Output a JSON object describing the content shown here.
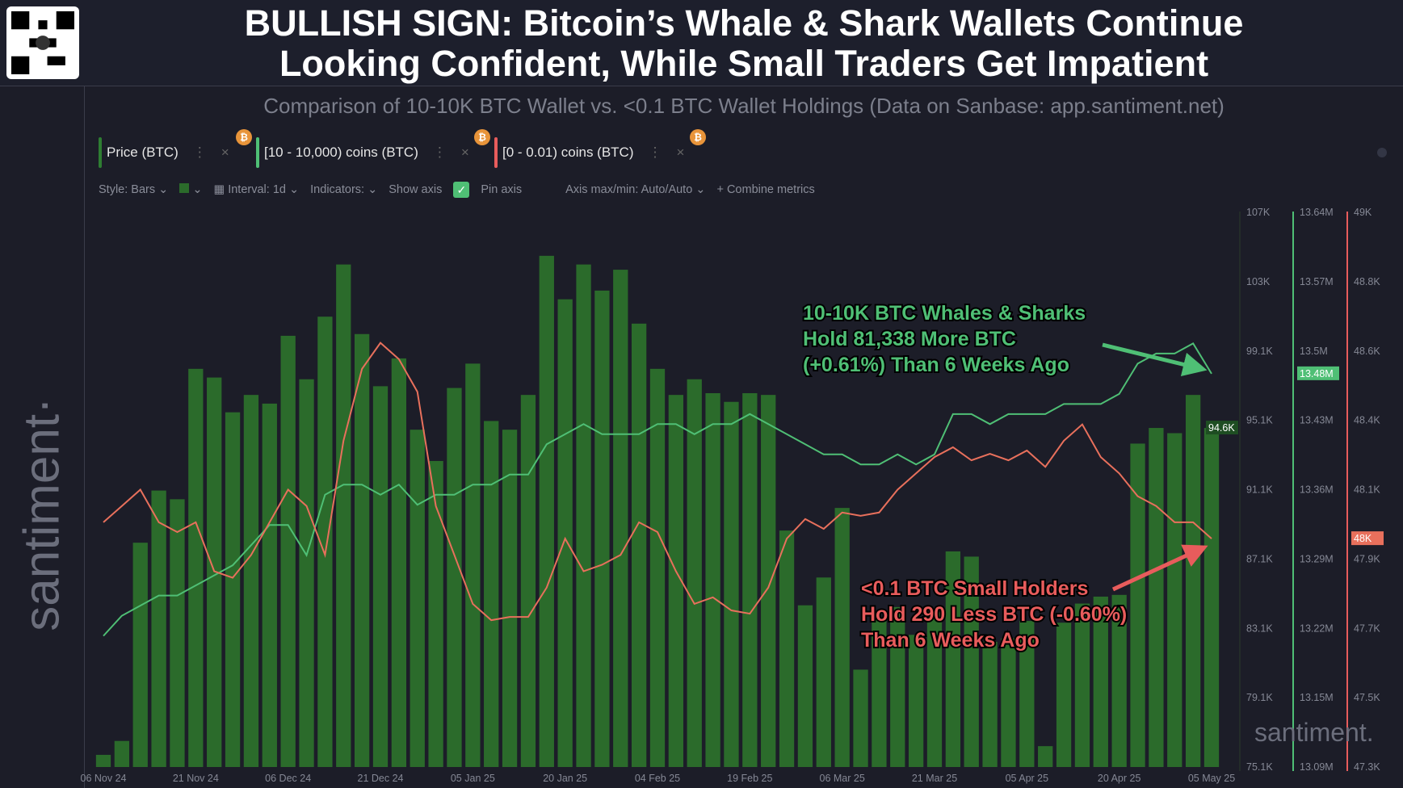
{
  "header": {
    "title_line1": "BULLISH SIGN: Bitcoin’s Whale & Shark Wallets Continue",
    "title_line2": "Looking Confident, While Small Traders Get Impatient",
    "subtitle": "Comparison of 10-10K BTC Wallet vs. <0.1 BTC Wallet Holdings (Data on Sanbase: app.santiment.net)",
    "brand": "santiment·"
  },
  "metrics": [
    {
      "label": "Price (BTC)",
      "color": "#2e7d32"
    },
    {
      "label": "[10 - 10,000) coins (BTC)",
      "color": "#4fbf75"
    },
    {
      "label": "[0 - 0.01) coins (BTC)",
      "color": "#e85c5c"
    }
  ],
  "toolbar": {
    "style": "Style: Bars",
    "interval": "Interval: 1d",
    "indicators": "Indicators:",
    "show_axis": "Show axis",
    "pin_axis": "Pin axis",
    "axis_minmax": "Axis max/min: Auto/Auto",
    "combine": "+ Combine metrics"
  },
  "chart_data": {
    "type": "bar+line",
    "x_ticks": [
      "06 Nov 24",
      "21 Nov 24",
      "06 Dec 24",
      "21 Dec 24",
      "05 Jan 25",
      "20 Jan 25",
      "04 Feb 25",
      "19 Feb 25",
      "06 Mar 25",
      "21 Mar 25",
      "05 Apr 25",
      "20 Apr 25",
      "05 May 25"
    ],
    "x_start": "2024-11-06",
    "x_step_days": 3,
    "series": [
      {
        "name": "Price (BTC)",
        "type": "bar",
        "color": "#2b6b2b",
        "axis_ticks": [
          "107K",
          "103K",
          "99.1K",
          "95.1K",
          "91.1K",
          "87.1K",
          "83.1K",
          "79.1K",
          "75.1K"
        ],
        "ylim": [
          75.1,
          107
        ],
        "unit": "K",
        "last_label": "94.6K",
        "values": [
          75.8,
          76.6,
          88,
          91,
          90.5,
          98,
          97.5,
          95.5,
          96.5,
          96,
          99.9,
          97.4,
          101,
          104,
          100,
          97,
          98.6,
          94.5,
          92.7,
          96.9,
          98.3,
          95,
          94.5,
          96.5,
          104.5,
          102,
          104,
          102.5,
          103.7,
          100.6,
          98,
          96.5,
          97.4,
          96.6,
          96.1,
          96.6,
          96.5,
          88.7,
          84.4,
          86,
          90,
          80.7,
          83.7,
          84.3,
          82.7,
          84,
          87.5,
          87.2,
          82.3,
          82.5,
          83.5,
          76.3,
          83.4,
          84.5,
          84.9,
          85,
          93.7,
          94.6,
          94.3,
          96.5,
          94.6
        ]
      },
      {
        "name": "[10 - 10,000) coins (BTC)",
        "type": "line",
        "color": "#4fbf75",
        "axis_ticks": [
          "13.64M",
          "13.57M",
          "13.5M",
          "13.43M",
          "13.36M",
          "13.29M",
          "13.22M",
          "13.15M",
          "13.09M"
        ],
        "ylim": [
          13.09,
          13.64
        ],
        "unit": "M",
        "last_label": "13.48M",
        "values": [
          13.22,
          13.24,
          13.25,
          13.26,
          13.26,
          13.27,
          13.28,
          13.29,
          13.31,
          13.33,
          13.33,
          13.3,
          13.36,
          13.37,
          13.37,
          13.36,
          13.37,
          13.35,
          13.36,
          13.36,
          13.37,
          13.37,
          13.38,
          13.38,
          13.41,
          13.42,
          13.43,
          13.42,
          13.42,
          13.42,
          13.43,
          13.43,
          13.42,
          13.43,
          13.43,
          13.44,
          13.43,
          13.42,
          13.41,
          13.4,
          13.4,
          13.39,
          13.39,
          13.4,
          13.39,
          13.4,
          13.44,
          13.44,
          13.43,
          13.44,
          13.44,
          13.44,
          13.45,
          13.45,
          13.45,
          13.46,
          13.49,
          13.5,
          13.5,
          13.51,
          13.48
        ]
      },
      {
        "name": "[0 - 0.01) coins (BTC)",
        "type": "line",
        "color": "#e8705c",
        "axis_ticks": [
          "49K",
          "48.8K",
          "48.6K",
          "48.4K",
          "48.1K",
          "47.9K",
          "47.7K",
          "47.5K",
          "47.3K"
        ],
        "ylim": [
          47.3,
          49
        ],
        "unit": "K",
        "last_label": "48K",
        "values": [
          48.05,
          48.1,
          48.15,
          48.05,
          48.02,
          48.05,
          47.9,
          47.88,
          47.95,
          48.05,
          48.15,
          48.1,
          47.95,
          48.3,
          48.52,
          48.6,
          48.55,
          48.45,
          48.1,
          47.95,
          47.8,
          47.75,
          47.76,
          47.76,
          47.85,
          48.0,
          47.9,
          47.92,
          47.95,
          48.05,
          48.02,
          47.9,
          47.8,
          47.82,
          47.78,
          47.77,
          47.85,
          48.0,
          48.06,
          48.03,
          48.08,
          48.07,
          48.08,
          48.15,
          48.2,
          48.25,
          48.28,
          48.24,
          48.26,
          48.24,
          48.27,
          48.22,
          48.3,
          48.35,
          48.25,
          48.2,
          48.13,
          48.1,
          48.05,
          48.05,
          48.0
        ]
      }
    ],
    "annotations": [
      {
        "lines": [
          "10-10K BTC Whales & Sharks",
          "Hold 81,338 More BTC",
          "(+0.61%) Than 6 Weeks Ago"
        ],
        "color": "#4fbf75"
      },
      {
        "lines": [
          "<0.1 BTC Small Holders",
          "Hold 290 Less BTC (-0.60%)",
          "Than 6 Weeks Ago"
        ],
        "color": "#e85c5c"
      }
    ],
    "watermark": "santiment."
  }
}
